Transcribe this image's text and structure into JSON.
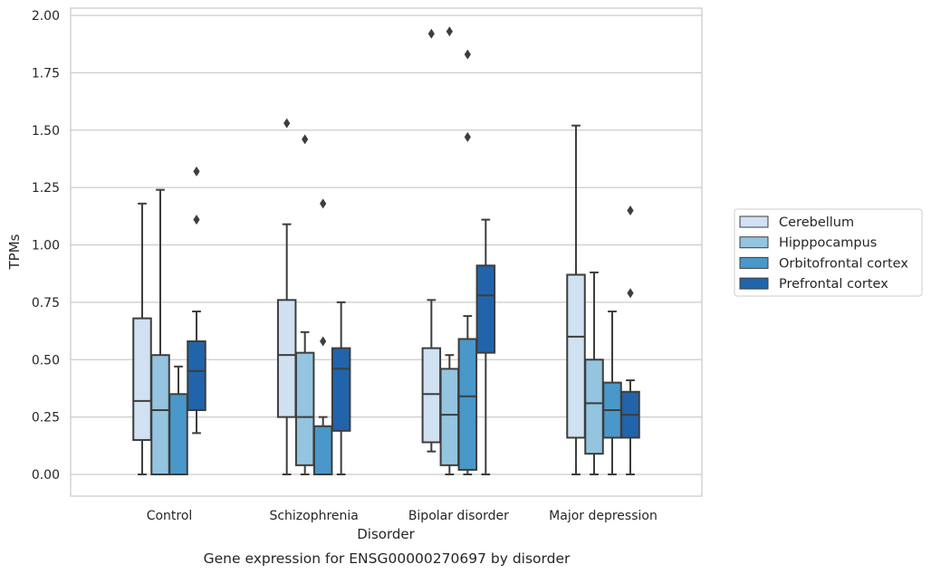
{
  "chart_data": {
    "type": "boxplot",
    "caption": "Gene expression for ENSG00000270697 by disorder",
    "xlabel": "Disorder",
    "ylabel": "TPMs",
    "ylim": [
      -0.1,
      2.03
    ],
    "yticks": [
      "0.00",
      "0.25",
      "0.50",
      "0.75",
      "1.00",
      "1.25",
      "1.50",
      "1.75",
      "2.00"
    ],
    "grid": true,
    "legend_position": "right",
    "categories": [
      "Control",
      "Schizophrenia",
      "Bipolar disorder",
      "Major depression"
    ],
    "series": [
      {
        "name": "Cerebellum",
        "color": "#d0e1f2",
        "boxes": [
          {
            "whislo": 0.0,
            "q1": 0.15,
            "med": 0.32,
            "q3": 0.68,
            "whishi": 1.18,
            "fliers": []
          },
          {
            "whislo": 0.0,
            "q1": 0.25,
            "med": 0.52,
            "q3": 0.76,
            "whishi": 1.09,
            "fliers": [
              1.53
            ]
          },
          {
            "whislo": 0.1,
            "q1": 0.14,
            "med": 0.35,
            "q3": 0.55,
            "whishi": 0.76,
            "fliers": [
              1.92
            ]
          },
          {
            "whislo": 0.0,
            "q1": 0.16,
            "med": 0.6,
            "q3": 0.87,
            "whishi": 1.52,
            "fliers": []
          }
        ]
      },
      {
        "name": "Hipppocampus",
        "color": "#94c4df",
        "boxes": [
          {
            "whislo": 0.0,
            "q1": 0.0,
            "med": 0.28,
            "q3": 0.52,
            "whishi": 1.24,
            "fliers": []
          },
          {
            "whislo": 0.0,
            "q1": 0.04,
            "med": 0.25,
            "q3": 0.53,
            "whishi": 0.62,
            "fliers": [
              1.46
            ]
          },
          {
            "whislo": 0.0,
            "q1": 0.04,
            "med": 0.26,
            "q3": 0.46,
            "whishi": 0.52,
            "fliers": [
              1.93
            ]
          },
          {
            "whislo": 0.0,
            "q1": 0.09,
            "med": 0.31,
            "q3": 0.5,
            "whishi": 0.88,
            "fliers": []
          }
        ]
      },
      {
        "name": "Orbitofrontal cortex",
        "color": "#4a98c9",
        "boxes": [
          {
            "whislo": 0.0,
            "q1": 0.0,
            "med": 0.0,
            "q3": 0.35,
            "whishi": 0.47,
            "fliers": []
          },
          {
            "whislo": 0.0,
            "q1": 0.0,
            "med": 0.0,
            "q3": 0.21,
            "whishi": 0.25,
            "fliers": [
              1.18,
              0.58
            ]
          },
          {
            "whislo": 0.0,
            "q1": 0.02,
            "med": 0.34,
            "q3": 0.59,
            "whishi": 0.69,
            "fliers": [
              1.83,
              1.47
            ]
          },
          {
            "whislo": 0.0,
            "q1": 0.16,
            "med": 0.28,
            "q3": 0.4,
            "whishi": 0.71,
            "fliers": []
          }
        ]
      },
      {
        "name": "Prefrontal cortex",
        "color": "#2164ab",
        "boxes": [
          {
            "whislo": 0.18,
            "q1": 0.28,
            "med": 0.45,
            "q3": 0.58,
            "whishi": 0.71,
            "fliers": [
              1.32,
              1.11
            ]
          },
          {
            "whislo": 0.0,
            "q1": 0.19,
            "med": 0.46,
            "q3": 0.55,
            "whishi": 0.75,
            "fliers": []
          },
          {
            "whislo": 0.0,
            "q1": 0.53,
            "med": 0.78,
            "q3": 0.91,
            "whishi": 1.11,
            "fliers": []
          },
          {
            "whislo": 0.0,
            "q1": 0.16,
            "med": 0.26,
            "q3": 0.36,
            "whishi": 0.41,
            "fliers": [
              1.15,
              0.79
            ]
          }
        ]
      }
    ]
  }
}
